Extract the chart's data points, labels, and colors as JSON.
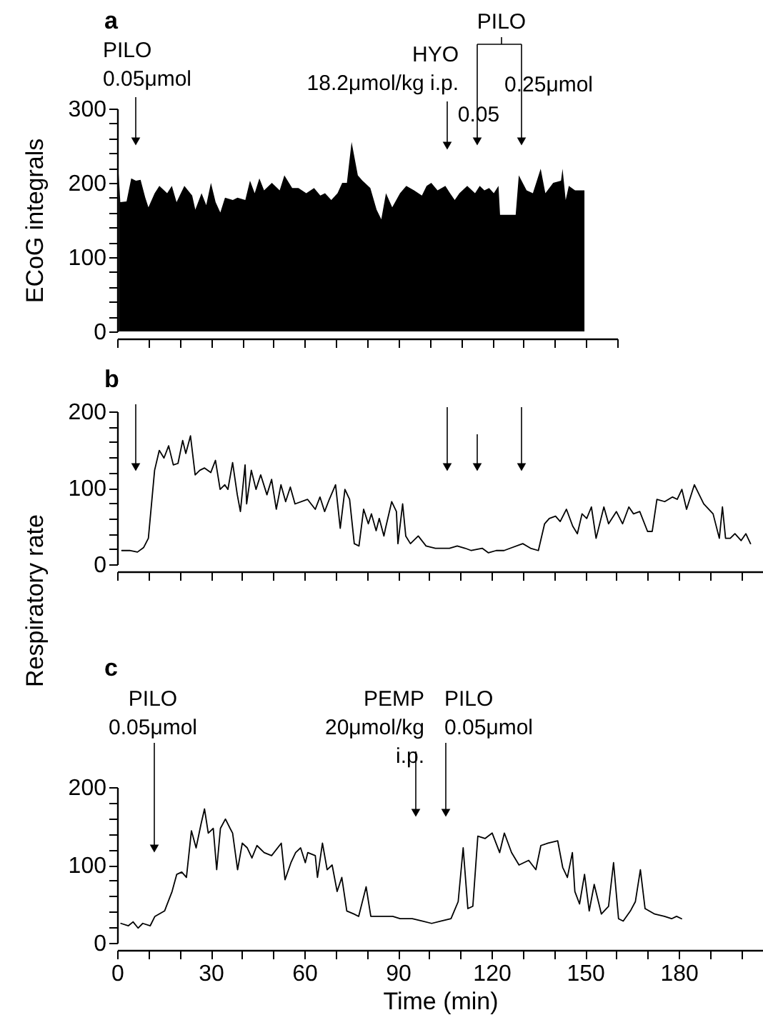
{
  "chart_data": [
    {
      "type": "area",
      "title": "a",
      "ylabel": "ECoG integrals",
      "color": "#000000",
      "tick_labels": "y",
      "x": [
        0.5,
        1,
        3,
        4.5,
        6,
        7.5,
        9,
        10,
        12,
        13.5,
        16,
        17.5,
        19,
        21.5,
        24,
        25,
        27,
        28.5,
        30,
        31.5,
        33,
        34.5,
        37,
        38.5,
        41,
        42.5,
        44,
        45.5,
        47,
        49.5,
        52,
        53.5,
        56,
        58,
        60.5,
        63,
        65,
        66.5,
        68.5,
        70.5,
        72,
        73.5,
        75,
        77,
        78.5,
        81,
        83,
        84.5,
        86,
        88,
        90.5,
        92.5,
        95,
        97.5,
        99,
        100.5,
        102.5,
        105,
        106.5,
        108,
        109.5,
        112,
        114.5,
        116,
        117.5,
        119,
        120.5,
        122,
        122.5,
        127.5,
        128.5,
        131,
        133,
        135.5,
        137,
        139.5,
        142,
        142.5,
        143.5,
        144.5,
        146.5,
        149.5
      ],
      "values": [
        213,
        174,
        175,
        206,
        203,
        204,
        180,
        167,
        186,
        196,
        186,
        196,
        174,
        196,
        183,
        164,
        186,
        170,
        200,
        174,
        160,
        180,
        177,
        180,
        177,
        203,
        186,
        206,
        190,
        200,
        190,
        210,
        193,
        193,
        186,
        193,
        183,
        186,
        177,
        186,
        200,
        200,
        255,
        210,
        203,
        193,
        164,
        151,
        186,
        167,
        186,
        196,
        190,
        183,
        196,
        200,
        190,
        196,
        186,
        177,
        186,
        196,
        186,
        196,
        190,
        193,
        186,
        196,
        157,
        157,
        210,
        190,
        186,
        219,
        186,
        200,
        203,
        219,
        177,
        196,
        190,
        190
      ],
      "xlim": [
        0,
        160
      ],
      "xticks": [
        0,
        10,
        20,
        30,
        40,
        50,
        60,
        70,
        80,
        90,
        100,
        110,
        120,
        130,
        140,
        150,
        160
      ],
      "ylim": [
        0,
        300
      ],
      "yticks": [
        0,
        {
          "value": 20,
          "label": null
        },
        {
          "value": 40,
          "label": null
        },
        {
          "value": 60,
          "label": null
        },
        {
          "value": 80,
          "label": null
        },
        100,
        {
          "value": 120,
          "label": null
        },
        {
          "value": 140,
          "label": null
        },
        {
          "value": 160,
          "label": null
        },
        {
          "value": 180,
          "label": null
        },
        200,
        {
          "value": 220,
          "label": null
        },
        {
          "value": 240,
          "label": null
        },
        {
          "value": 260,
          "label": null
        },
        {
          "value": 280,
          "label": null
        },
        300
      ],
      "annotations": [
        "PILO\n0.05μmol",
        "HYO\n18.2μmol/kg i.p.",
        "PILO",
        "0.05",
        "0.25μmol"
      ]
    },
    {
      "type": "line",
      "title": "b",
      "ylabel": "Respiratory rate",
      "color": "#000000",
      "tick_labels": "y",
      "x": [
        1.5,
        4,
        6.5,
        8.5,
        10,
        12,
        13.5,
        15,
        16.5,
        18,
        19.5,
        21,
        22,
        23.5,
        25,
        26.5,
        28,
        30,
        31.5,
        33,
        34.5,
        35.5,
        37,
        38.5,
        39.5,
        41,
        41.5,
        43,
        44.5,
        46,
        48,
        49.5,
        51,
        52.5,
        54,
        55.5,
        57,
        61,
        63.5,
        65,
        66.5,
        68,
        70,
        71.5,
        73,
        74.5,
        76,
        77.5,
        79,
        80.5,
        81.5,
        83,
        84,
        85.5,
        86,
        88,
        89.5,
        90,
        91.5,
        92.5,
        94,
        96.5,
        99,
        102,
        106.5,
        109,
        111.5,
        113.5,
        117,
        119,
        121.5,
        124,
        126,
        130,
        132.5,
        135,
        137,
        138.5,
        140.5,
        142,
        144,
        146,
        147.5,
        149,
        150.5,
        152,
        153.5,
        156,
        157.5,
        160,
        162,
        164,
        165.5,
        167.5,
        170,
        171.5,
        173,
        175.5,
        178,
        179.5,
        181,
        182.5,
        185,
        188,
        191,
        193,
        194,
        195,
        196.5,
        198,
        200,
        201.5,
        203
      ],
      "values": [
        18,
        18,
        16,
        22,
        34,
        123,
        149,
        139,
        155,
        130,
        132,
        162,
        145,
        168,
        117,
        123,
        126,
        120,
        136,
        98,
        104,
        98,
        133,
        91,
        69,
        130,
        79,
        123,
        98,
        117,
        91,
        111,
        72,
        104,
        82,
        101,
        79,
        85,
        72,
        88,
        69,
        85,
        104,
        47,
        98,
        85,
        27,
        24,
        72,
        53,
        66,
        44,
        60,
        37,
        47,
        82,
        69,
        27,
        79,
        37,
        27,
        37,
        24,
        21,
        21,
        24,
        21,
        18,
        21,
        15,
        18,
        18,
        21,
        27,
        21,
        18,
        53,
        60,
        63,
        56,
        72,
        50,
        40,
        66,
        60,
        75,
        34,
        75,
        53,
        69,
        53,
        75,
        66,
        69,
        43,
        43,
        85,
        82,
        88,
        85,
        98,
        72,
        104,
        79,
        66,
        34,
        75,
        34,
        34,
        40,
        31,
        40,
        27
      ],
      "xlim": [
        0,
        207
      ],
      "xticks": [
        0,
        10,
        20,
        30,
        40,
        50,
        60,
        70,
        80,
        90,
        100,
        110,
        120,
        130,
        140,
        150,
        160,
        170,
        180,
        190,
        200
      ],
      "ylim": [
        0,
        200
      ],
      "yticks": [
        0,
        {
          "value": 20,
          "label": null
        },
        {
          "value": 40,
          "label": null
        },
        {
          "value": 60,
          "label": null
        },
        {
          "value": 80,
          "label": null
        },
        100,
        {
          "value": 120,
          "label": null
        },
        {
          "value": 140,
          "label": null
        },
        {
          "value": 160,
          "label": null
        },
        {
          "value": 180,
          "label": null
        },
        200
      ]
    },
    {
      "type": "line",
      "title": "c",
      "xlabel": "Time (min)",
      "color": "#000000",
      "x": [
        1.2,
        3.6,
        5.1,
        6.7,
        8.2,
        10.6,
        12.1,
        15.2,
        17.6,
        19.1,
        20.7,
        22.2,
        23.8,
        25.3,
        26.9,
        28,
        29.2,
        30.8,
        31.9,
        33.1,
        34.7,
        36.2,
        37,
        38.6,
        40.1,
        41.7,
        43.2,
        44.8,
        47.1,
        49.5,
        52.6,
        53.8,
        55.7,
        57.2,
        58.8,
        60.3,
        61.1,
        63.5,
        64.2,
        65.8,
        67.3,
        68.9,
        70.5,
        72,
        73.6,
        75.9,
        77.4,
        79.8,
        81.3,
        84.4,
        88.3,
        90.7,
        94.6,
        97.7,
        100.8,
        103.9,
        107,
        109.3,
        110.9,
        112.4,
        114,
        115.6,
        117.9,
        120.2,
        122.6,
        124.1,
        126.4,
        128.8,
        131.9,
        134.2,
        135.8,
        138.1,
        141.2,
        142.8,
        144.3,
        145.9,
        146.7,
        148.2,
        149.8,
        151.3,
        152.9,
        155.2,
        157.5,
        159.1,
        160.7,
        162.2,
        164.5,
        166.1,
        167.7,
        169.2,
        172.3,
        175.4,
        177.7,
        179.3,
        180.9
      ],
      "values": [
        25,
        22,
        27,
        19,
        25,
        22,
        34,
        41,
        66,
        88,
        91,
        84,
        144,
        122,
        153,
        172,
        141,
        147,
        94,
        147,
        159,
        147,
        141,
        94,
        128,
        122,
        109,
        125,
        116,
        112,
        128,
        81,
        103,
        116,
        122,
        103,
        116,
        112,
        84,
        128,
        94,
        100,
        66,
        84,
        41,
        37,
        34,
        72,
        34,
        34,
        34,
        31,
        31,
        28,
        25,
        28,
        31,
        53,
        122,
        44,
        47,
        137,
        134,
        141,
        116,
        141,
        116,
        100,
        106,
        94,
        125,
        128,
        131,
        97,
        84,
        116,
        66,
        50,
        88,
        41,
        75,
        37,
        47,
        103,
        31,
        28,
        41,
        53,
        94,
        44,
        37,
        34,
        31,
        34,
        31
      ],
      "xlim": [
        0,
        207
      ],
      "xticks": [
        0,
        {
          "value": 10,
          "label": null
        },
        {
          "value": 20,
          "label": null
        },
        30,
        {
          "value": 40,
          "label": null
        },
        {
          "value": 50,
          "label": null
        },
        60,
        {
          "value": 70,
          "label": null
        },
        {
          "value": 80,
          "label": null
        },
        90,
        {
          "value": 100,
          "label": null
        },
        {
          "value": 110,
          "label": null
        },
        120,
        {
          "value": 130,
          "label": null
        },
        {
          "value": 140,
          "label": null
        },
        150,
        {
          "value": 160,
          "label": null
        },
        {
          "value": 170,
          "label": null
        },
        180,
        {
          "value": 190,
          "label": null
        },
        {
          "value": 200,
          "label": null
        }
      ],
      "ylim": [
        0,
        200
      ],
      "yticks": [
        0,
        {
          "value": 20,
          "label": null
        },
        {
          "value": 40,
          "label": null
        },
        {
          "value": 60,
          "label": null
        },
        {
          "value": 80,
          "label": null
        },
        100,
        {
          "value": 120,
          "label": null
        },
        {
          "value": 140,
          "label": null
        },
        {
          "value": 160,
          "label": null
        },
        {
          "value": 180,
          "label": null
        },
        200
      ],
      "annotations": [
        "PILO\n0.05μmol",
        "PEMP\n20μmol/kg\ni.p.",
        "PILO\n0.05μmol"
      ]
    }
  ]
}
